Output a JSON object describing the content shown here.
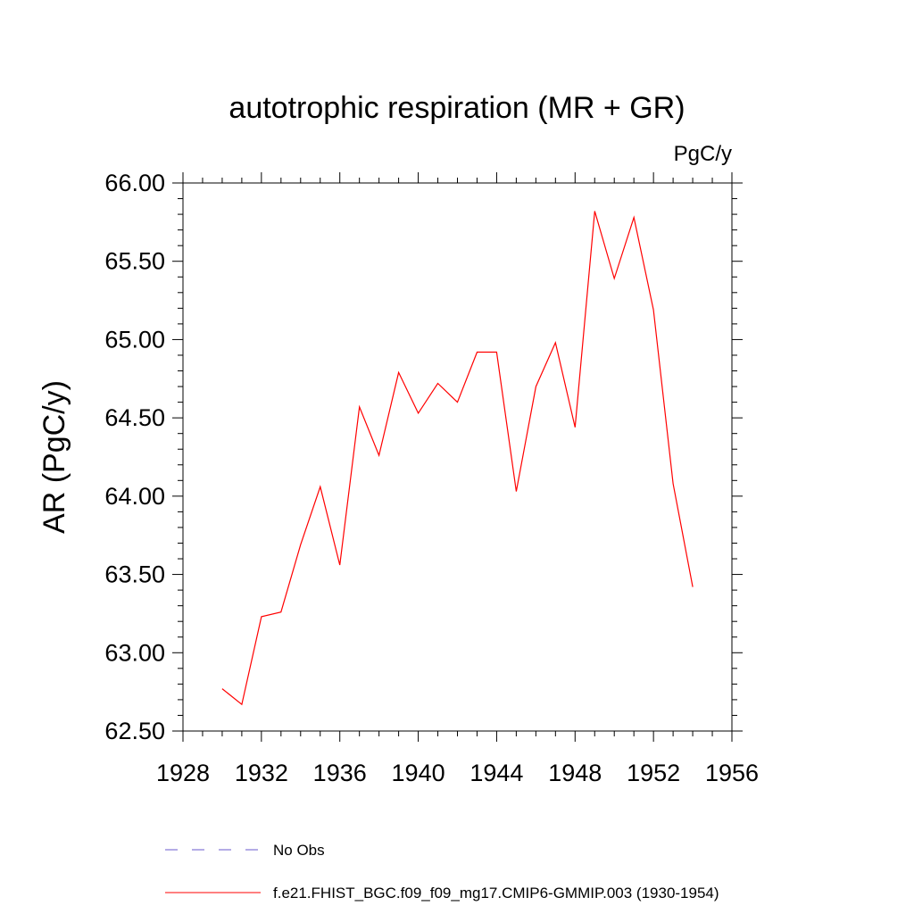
{
  "chart_data": {
    "type": "line",
    "title": "autotrophic respiration (MR + GR)",
    "units": "PgC/y",
    "ylabel": "AR  (PgC/y)",
    "xlabel": "",
    "xlim": [
      1928,
      1956
    ],
    "ylim": [
      62.5,
      66.0
    ],
    "xticks": [
      1928,
      1932,
      1936,
      1940,
      1944,
      1948,
      1952,
      1956
    ],
    "xtick_labels": [
      "1928",
      "1932",
      "1936",
      "1940",
      "1944",
      "1948",
      "1952",
      "1956"
    ],
    "yticks": [
      62.5,
      63.0,
      63.5,
      64.0,
      64.5,
      65.0,
      65.5,
      66.0
    ],
    "ytick_labels": [
      "62.50",
      "63.00",
      "63.50",
      "64.00",
      "64.50",
      "65.00",
      "65.50",
      "66.00"
    ],
    "grid": false,
    "legend_position": "bottom",
    "series": [
      {
        "name": "f.e21.FHIST_BGC.f09_f09_mg17.CMIP6-GMMIP.003 (1930-1954)",
        "color": "#ff0000",
        "style": "solid",
        "x": [
          1930,
          1931,
          1932,
          1933,
          1934,
          1935,
          1936,
          1937,
          1938,
          1939,
          1940,
          1941,
          1942,
          1943,
          1944,
          1945,
          1946,
          1947,
          1948,
          1949,
          1950,
          1951,
          1952,
          1953,
          1954
        ],
        "values": [
          62.77,
          62.67,
          63.23,
          63.26,
          63.69,
          64.06,
          63.56,
          64.57,
          64.26,
          64.79,
          64.53,
          64.72,
          64.6,
          64.92,
          64.92,
          64.03,
          64.7,
          64.98,
          64.44,
          65.82,
          65.39,
          65.78,
          65.19,
          64.08,
          63.42
        ]
      }
    ],
    "legend": [
      {
        "label": "No Obs",
        "color": "#6a5acd",
        "style": "dashed"
      },
      {
        "label": "f.e21.FHIST_BGC.f09_f09_mg17.CMIP6-GMMIP.003 (1930-1954)",
        "color": "#ff0000",
        "style": "solid"
      }
    ]
  }
}
